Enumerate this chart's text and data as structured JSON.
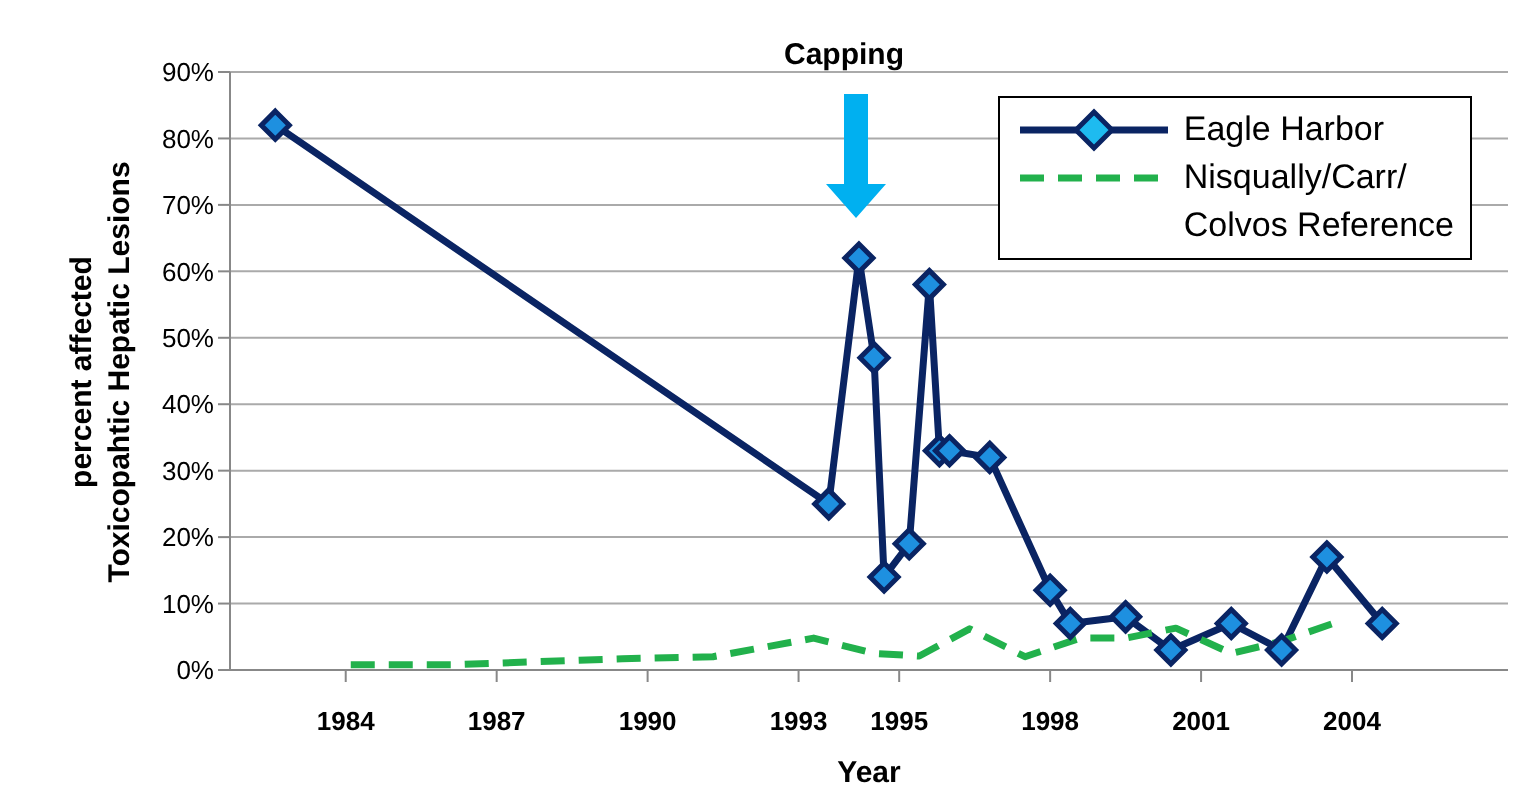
{
  "chart_data": {
    "type": "line",
    "xlabel": "Year",
    "ylabel": "percent affected\nToxicopahtic Hepatic Lesions",
    "annotations": [
      "Capping"
    ],
    "xlim": [
      1981.7,
      2007.1
    ],
    "xticks": [
      1984,
      1987,
      1990,
      1993,
      1995,
      1998,
      2001,
      2004
    ],
    "ylim": [
      0,
      90
    ],
    "yticks": [
      {
        "value": 0,
        "label": "0%"
      },
      {
        "value": 10,
        "label": "10%"
      },
      {
        "value": 20,
        "label": "20%"
      },
      {
        "value": 30,
        "label": "30%"
      },
      {
        "value": 40,
        "label": "40%"
      },
      {
        "value": 50,
        "label": "50%"
      },
      {
        "value": 60,
        "label": "60%"
      },
      {
        "value": 70,
        "label": "70%"
      },
      {
        "value": 80,
        "label": "80%"
      },
      {
        "value": 90,
        "label": "90%"
      }
    ],
    "grid": "y",
    "legend": "top right",
    "series": [
      {
        "name": "Eagle Harbor",
        "color": "#0a2463",
        "marker": "diamond",
        "line_style": "solid",
        "x": [
          1982.6,
          1993.6,
          1994.2,
          1994.5,
          1994.7,
          1995.2,
          1995.6,
          1995.8,
          1996.0,
          1996.8,
          1998.0,
          1998.4,
          1999.5,
          2000.4,
          2001.6,
          2002.6,
          2003.5,
          2004.6
        ],
        "values": [
          82,
          25,
          62,
          47,
          14,
          19,
          58,
          33,
          33,
          32,
          12,
          7,
          8,
          3,
          7,
          3,
          17,
          7
        ]
      },
      {
        "name": "Nisqually/Carr/\nColvos Reference",
        "color": "#22b14c",
        "marker": "none",
        "line_style": "dashed",
        "x": [
          1984.1,
          1986.1,
          1989.5,
          1991.3,
          1993.3,
          1994.5,
          1995.4,
          1996.4,
          1997.5,
          1998.6,
          1999.5,
          2000.5,
          2001.6,
          2002.6,
          2003.7
        ],
        "values": [
          0.8,
          0.8,
          1.7,
          2,
          4.8,
          2.5,
          2.1,
          6.2,
          2,
          4.8,
          4.8,
          6.3,
          2.5,
          4.3,
          7.2
        ]
      }
    ]
  }
}
